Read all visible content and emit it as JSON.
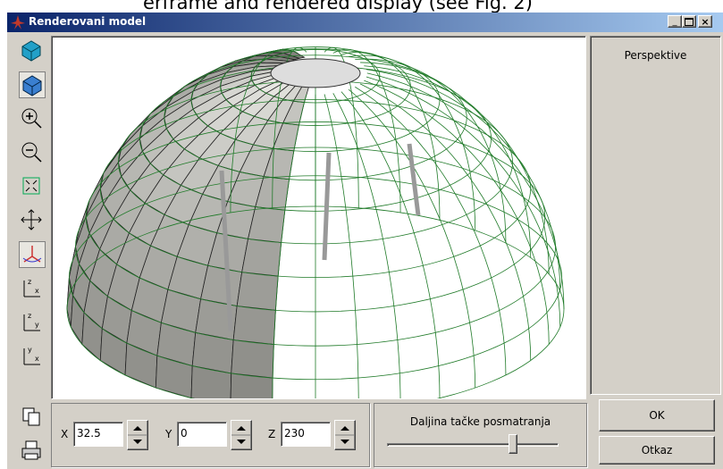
{
  "caption": "erframe and rendered display (see Fig. 2)",
  "window": {
    "title": "Renderovani model"
  },
  "view_panel": {
    "mode": "Perspektive"
  },
  "camera": {
    "x_label": "X",
    "x_value": 32.5,
    "y_label": "Y",
    "y_value": 0,
    "z_label": "Z",
    "z_value": 230
  },
  "distance": {
    "label": "Daljina tačke posmatranja"
  },
  "buttons": {
    "ok": "OK",
    "cancel": "Otkaz"
  }
}
